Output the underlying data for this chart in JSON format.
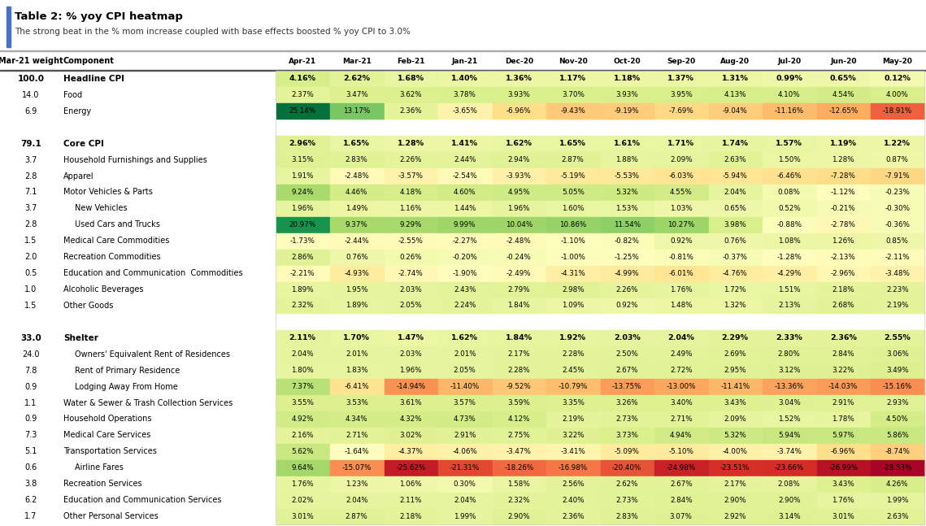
{
  "title": "Table 2: % yoy CPI heatmap",
  "subtitle": "The strong beat in the % mom increase coupled with base effects boosted % yoy CPI to 3.0%",
  "col_headers": [
    "Apr-21",
    "Mar-21",
    "Feb-21",
    "Jan-21",
    "Dec-20",
    "Nov-20",
    "Oct-20",
    "Sep-20",
    "Aug-20",
    "Jul-20",
    "Jun-20",
    "May-20"
  ],
  "rows": [
    {
      "weight": "100.0",
      "component": "Headline CPI",
      "bold": true,
      "indent": false,
      "values": [
        4.16,
        2.62,
        1.68,
        1.4,
        1.36,
        1.17,
        1.18,
        1.37,
        1.31,
        0.99,
        0.65,
        0.12
      ]
    },
    {
      "weight": "14.0",
      "component": "Food",
      "bold": false,
      "indent": false,
      "values": [
        2.37,
        3.47,
        3.62,
        3.78,
        3.93,
        3.7,
        3.93,
        3.95,
        4.13,
        4.1,
        4.54,
        4.0
      ]
    },
    {
      "weight": "6.9",
      "component": "Energy",
      "bold": false,
      "indent": false,
      "values": [
        25.14,
        13.17,
        2.36,
        -3.65,
        -6.96,
        -9.43,
        -9.19,
        -7.69,
        -9.04,
        -11.16,
        -12.65,
        -18.91
      ]
    },
    {
      "weight": "",
      "component": "",
      "bold": false,
      "indent": false,
      "values": null
    },
    {
      "weight": "79.1",
      "component": "Core CPI",
      "bold": true,
      "indent": false,
      "values": [
        2.96,
        1.65,
        1.28,
        1.41,
        1.62,
        1.65,
        1.61,
        1.71,
        1.74,
        1.57,
        1.19,
        1.22
      ]
    },
    {
      "weight": "3.7",
      "component": "Household Furnishings and Supplies",
      "bold": false,
      "indent": false,
      "values": [
        3.15,
        2.83,
        2.26,
        2.44,
        2.94,
        2.87,
        1.88,
        2.09,
        2.63,
        1.5,
        1.28,
        0.87
      ]
    },
    {
      "weight": "2.8",
      "component": "Apparel",
      "bold": false,
      "indent": false,
      "values": [
        1.91,
        -2.48,
        -3.57,
        -2.54,
        -3.93,
        -5.19,
        -5.53,
        -6.03,
        -5.94,
        -6.46,
        -7.28,
        -7.91
      ]
    },
    {
      "weight": "7.1",
      "component": "Motor Vehicles & Parts",
      "bold": false,
      "indent": false,
      "values": [
        9.24,
        4.46,
        4.18,
        4.6,
        4.95,
        5.05,
        5.32,
        4.55,
        2.04,
        0.08,
        -1.12,
        -0.23
      ]
    },
    {
      "weight": "3.7",
      "component": "New Vehicles",
      "bold": false,
      "indent": true,
      "values": [
        1.96,
        1.49,
        1.16,
        1.44,
        1.96,
        1.6,
        1.53,
        1.03,
        0.65,
        0.52,
        -0.21,
        -0.3
      ]
    },
    {
      "weight": "2.8",
      "component": "Used Cars and Trucks",
      "bold": false,
      "indent": true,
      "values": [
        20.97,
        9.37,
        9.29,
        9.99,
        10.04,
        10.86,
        11.54,
        10.27,
        3.98,
        -0.88,
        -2.78,
        -0.36
      ]
    },
    {
      "weight": "1.5",
      "component": "Medical Care Commodities",
      "bold": false,
      "indent": false,
      "values": [
        -1.73,
        -2.44,
        -2.55,
        -2.27,
        -2.48,
        -1.1,
        -0.82,
        0.92,
        0.76,
        1.08,
        1.26,
        0.85
      ]
    },
    {
      "weight": "2.0",
      "component": "Recreation Commodities",
      "bold": false,
      "indent": false,
      "values": [
        2.86,
        0.76,
        0.26,
        -0.2,
        -0.24,
        -1.0,
        -1.25,
        -0.81,
        -0.37,
        -1.28,
        -2.13,
        -2.11
      ]
    },
    {
      "weight": "0.5",
      "component": "Education and Communication  Commodities",
      "bold": false,
      "indent": false,
      "values": [
        -2.21,
        -4.93,
        -2.74,
        -1.9,
        -2.49,
        -4.31,
        -4.99,
        -6.01,
        -4.76,
        -4.29,
        -2.96,
        -3.48
      ]
    },
    {
      "weight": "1.0",
      "component": "Alcoholic Beverages",
      "bold": false,
      "indent": false,
      "values": [
        1.89,
        1.95,
        2.03,
        2.43,
        2.79,
        2.98,
        2.26,
        1.76,
        1.72,
        1.51,
        2.18,
        2.23
      ]
    },
    {
      "weight": "1.5",
      "component": "Other Goods",
      "bold": false,
      "indent": false,
      "values": [
        2.32,
        1.89,
        2.05,
        2.24,
        1.84,
        1.09,
        0.92,
        1.48,
        1.32,
        2.13,
        2.68,
        2.19
      ]
    },
    {
      "weight": "",
      "component": "",
      "bold": false,
      "indent": false,
      "values": null
    },
    {
      "weight": "33.0",
      "component": "Shelter",
      "bold": true,
      "indent": false,
      "values": [
        2.11,
        1.7,
        1.47,
        1.62,
        1.84,
        1.92,
        2.03,
        2.04,
        2.29,
        2.33,
        2.36,
        2.55
      ]
    },
    {
      "weight": "24.0",
      "component": "Owners' Equivalent Rent of Residences",
      "bold": false,
      "indent": true,
      "values": [
        2.04,
        2.01,
        2.03,
        2.01,
        2.17,
        2.28,
        2.5,
        2.49,
        2.69,
        2.8,
        2.84,
        3.06
      ]
    },
    {
      "weight": "7.8",
      "component": "Rent of Primary Residence",
      "bold": false,
      "indent": true,
      "values": [
        1.8,
        1.83,
        1.96,
        2.05,
        2.28,
        2.45,
        2.67,
        2.72,
        2.95,
        3.12,
        3.22,
        3.49
      ]
    },
    {
      "weight": "0.9",
      "component": "Lodging Away From Home",
      "bold": false,
      "indent": true,
      "values": [
        7.37,
        -6.41,
        -14.94,
        -11.4,
        -9.52,
        -10.79,
        -13.75,
        -13.0,
        -11.41,
        -13.36,
        -14.03,
        -15.16
      ]
    },
    {
      "weight": "1.1",
      "component": "Water & Sewer & Trash Collection Services",
      "bold": false,
      "indent": false,
      "values": [
        3.55,
        3.53,
        3.61,
        3.57,
        3.59,
        3.35,
        3.26,
        3.4,
        3.43,
        3.04,
        2.91,
        2.93
      ]
    },
    {
      "weight": "0.9",
      "component": "Household Operations",
      "bold": false,
      "indent": false,
      "values": [
        4.92,
        4.34,
        4.32,
        4.73,
        4.12,
        2.19,
        2.73,
        2.71,
        2.09,
        1.52,
        1.78,
        4.5
      ]
    },
    {
      "weight": "7.3",
      "component": "Medical Care Services",
      "bold": false,
      "indent": false,
      "values": [
        2.16,
        2.71,
        3.02,
        2.91,
        2.75,
        3.22,
        3.73,
        4.94,
        5.32,
        5.94,
        5.97,
        5.86
      ]
    },
    {
      "weight": "5.1",
      "component": "Transportation Services",
      "bold": false,
      "indent": false,
      "values": [
        5.62,
        -1.64,
        -4.37,
        -4.06,
        -3.47,
        -3.41,
        -5.09,
        -5.1,
        -4.0,
        -3.74,
        -6.96,
        -8.74
      ]
    },
    {
      "weight": "0.6",
      "component": "Airline Fares",
      "bold": false,
      "indent": true,
      "values": [
        9.64,
        -15.07,
        -25.62,
        -21.31,
        -18.26,
        -16.98,
        -20.4,
        -24.98,
        -23.51,
        -23.66,
        -26.99,
        -28.53
      ]
    },
    {
      "weight": "3.8",
      "component": "Recreation Services",
      "bold": false,
      "indent": false,
      "values": [
        1.76,
        1.23,
        1.06,
        0.3,
        1.58,
        2.56,
        2.62,
        2.67,
        2.17,
        2.08,
        3.43,
        4.26
      ]
    },
    {
      "weight": "6.2",
      "component": "Education and Communication Services",
      "bold": false,
      "indent": false,
      "values": [
        2.02,
        2.04,
        2.11,
        2.04,
        2.32,
        2.4,
        2.73,
        2.84,
        2.9,
        2.9,
        1.76,
        1.99
      ]
    },
    {
      "weight": "1.7",
      "component": "Other Personal Services",
      "bold": false,
      "indent": false,
      "values": [
        3.01,
        2.87,
        2.18,
        1.99,
        2.9,
        2.36,
        2.83,
        3.07,
        2.92,
        3.14,
        3.01,
        2.63
      ]
    }
  ],
  "vmin": -29,
  "vmax": 26,
  "fig_width": 11.39,
  "fig_height": 6.47,
  "dpi": 100
}
